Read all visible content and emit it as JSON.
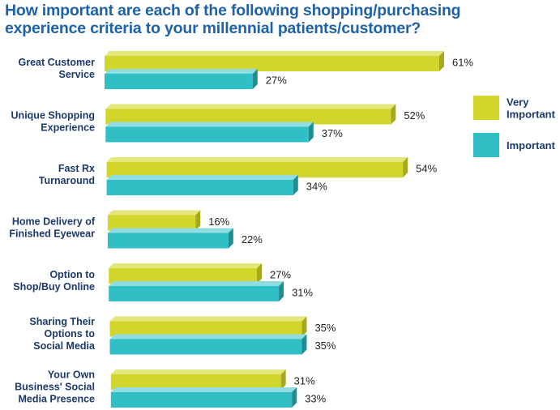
{
  "chart_data": {
    "type": "bar",
    "orientation": "horizontal",
    "title": "How important are each of the following shopping/purchasing experience criteria to your millennial patients/customer?",
    "title_lines": [
      "How important are each of the following shopping/purchasing",
      "experience criteria to your millennial patients/customer?"
    ],
    "categories": [
      [
        "Great Customer",
        "Service"
      ],
      [
        "Unique Shopping",
        "Experience"
      ],
      [
        "Fast Rx",
        "Turnaround"
      ],
      [
        "Home Delivery of",
        "Finished Eyewear"
      ],
      [
        "Option to",
        "Shop/Buy Online"
      ],
      [
        "Sharing Their",
        "Options to",
        "Social Media"
      ],
      [
        "Your Own",
        "Business' Social",
        "Media Presence"
      ]
    ],
    "series": [
      {
        "name": "Very Important",
        "legend_lines": [
          "Very",
          "Important"
        ],
        "color": "#d2d62b",
        "side": "#a6a91c",
        "top": "#e4e77a",
        "values": [
          61,
          52,
          54,
          16,
          27,
          35,
          31
        ],
        "labels": [
          "61%",
          "52%",
          "54%",
          "16%",
          "27%",
          "35%",
          "31%"
        ]
      },
      {
        "name": "Important",
        "legend_lines": [
          "Important"
        ],
        "color": "#2fbfc4",
        "side": "#1e8e93",
        "top": "#8fdde0",
        "values": [
          27,
          37,
          34,
          22,
          31,
          35,
          33
        ],
        "labels": [
          "27%",
          "37%",
          "34%",
          "22%",
          "31%",
          "35%",
          "33%"
        ]
      }
    ],
    "xlim": [
      0,
      100
    ],
    "legend_position": "right",
    "grid": false
  }
}
